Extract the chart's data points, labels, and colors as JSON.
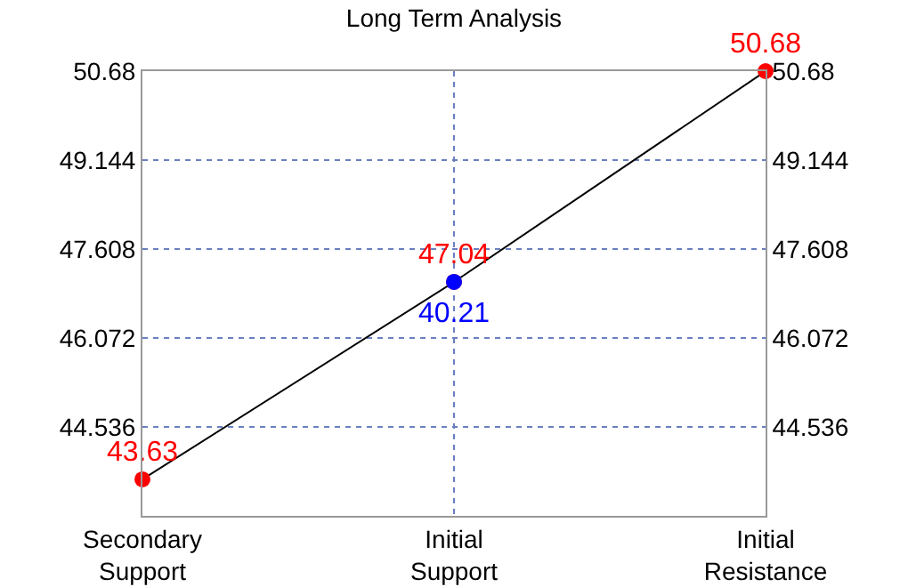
{
  "chart_data": {
    "type": "line",
    "title": "Long Term Analysis",
    "categories": [
      "Secondary Support",
      "Initial Support",
      "Initial Resistance"
    ],
    "series": [
      {
        "color": "#ff0000",
        "values": [
          43.63,
          47.04,
          50.68
        ],
        "value_labels": [
          "43.63",
          "47.04",
          "50.68"
        ]
      },
      {
        "type": "scatter",
        "color": "#0000ff",
        "values": [
          null,
          47.04,
          null
        ]
      }
    ],
    "ylim": [
      43.0,
      50.68
    ],
    "yticks": [
      44.536,
      46.072,
      47.608,
      49.144,
      50.68
    ],
    "y2lim": [
      43.0,
      50.68
    ],
    "y2ticks": [
      44.536,
      46.072,
      47.608,
      49.144,
      50.68
    ],
    "annotations": [
      {
        "text": "40.21",
        "x": "Initial Support",
        "y": 47.04
      }
    ],
    "grid": true,
    "marker": "circle",
    "line_style": "solid"
  }
}
